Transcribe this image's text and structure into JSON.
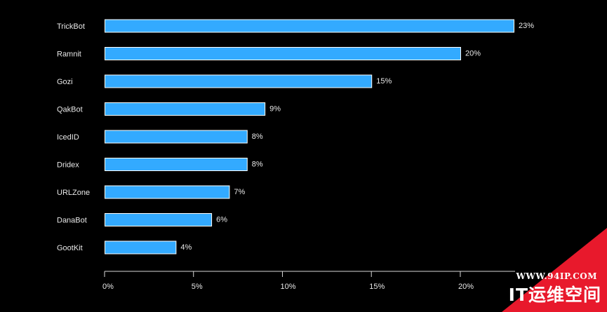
{
  "chart_data": {
    "type": "bar",
    "orientation": "horizontal",
    "title": "",
    "xlabel": "",
    "ylabel": "",
    "categories": [
      "TrickBot",
      "Ramnit",
      "Gozi",
      "QakBot",
      "IcedID",
      "Dridex",
      "URLZone",
      "DanaBot",
      "GootKit"
    ],
    "values": [
      23,
      20,
      15,
      9,
      8,
      8,
      7,
      6,
      4
    ],
    "value_labels": [
      "23%",
      "20%",
      "15%",
      "9%",
      "8%",
      "8%",
      "7%",
      "6%",
      "4%"
    ],
    "xlim": [
      0,
      23
    ],
    "xticks": [
      0,
      5,
      10,
      15,
      20
    ],
    "xtick_labels": [
      "0%",
      "5%",
      "10%",
      "15%",
      "20%"
    ],
    "grid": false,
    "colors": {
      "bar": "#33aaff",
      "background": "#000000",
      "text": "#e8e8e8"
    }
  },
  "watermark": {
    "url": "WWW.94IP.COM",
    "name": "IT运维空间",
    "color": "#e8192c"
  }
}
